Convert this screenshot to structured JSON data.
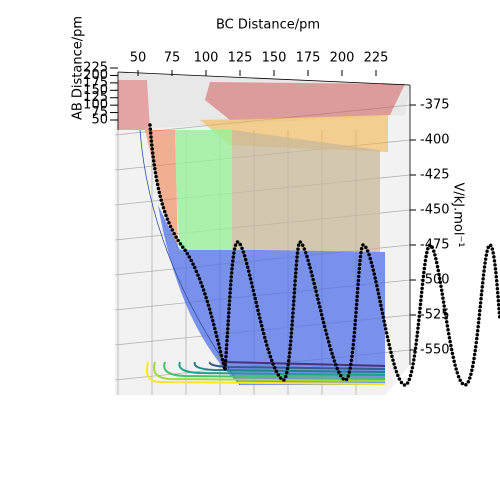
{
  "chart_data": {
    "type": "surface3d",
    "xlabel": "BC Distance/pm",
    "ylabel": "AB Distance/pm",
    "zlabel": "V/kJ.mol⁻¹",
    "xticks": [
      50,
      75,
      100,
      125,
      150,
      175,
      200,
      225
    ],
    "yticks": [
      50,
      75,
      100,
      125,
      150,
      175,
      200,
      225
    ],
    "zticks": [
      -375,
      -400,
      -425,
      -450,
      -475,
      -500,
      -525,
      -550
    ]
  }
}
